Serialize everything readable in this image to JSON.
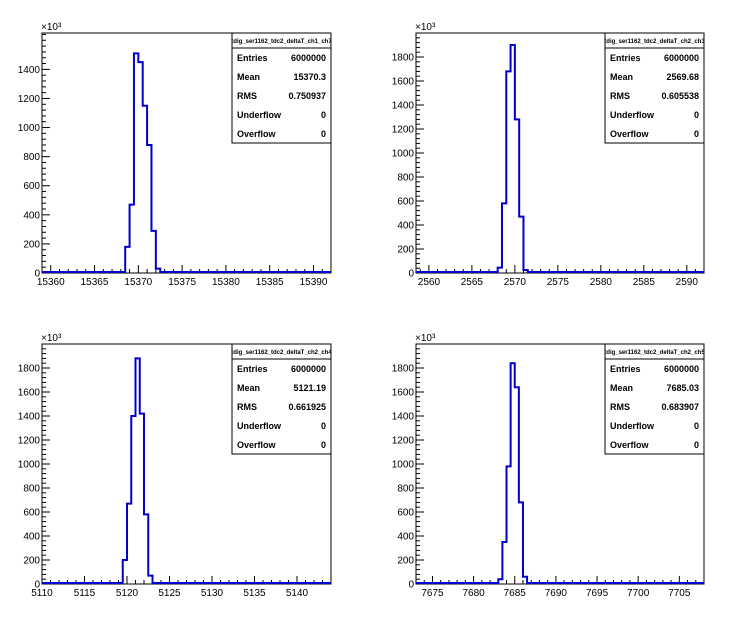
{
  "chart_data": [
    {
      "type": "histogram",
      "stats_title": "tdig_ser1162_tdc2_deltaT_ch1_ch7",
      "y_multiplier_label": "×10³",
      "xlim": [
        15359,
        15392
      ],
      "ylim": [
        0,
        1650
      ],
      "x_ticks": [
        15360,
        15365,
        15370,
        15375,
        15380,
        15385,
        15390
      ],
      "y_ticks": [
        0,
        200,
        400,
        600,
        800,
        1000,
        1200,
        1400
      ],
      "bin_edges": [
        15368.5,
        15369,
        15369.5,
        15370,
        15370.5,
        15371,
        15371.5,
        15372,
        15372.5
      ],
      "counts": [
        180,
        470,
        1510,
        1450,
        1150,
        880,
        290,
        30
      ],
      "stats": [
        {
          "label": "Entries",
          "value": "6000000"
        },
        {
          "label": "Mean",
          "value": "15370.3"
        },
        {
          "label": "RMS",
          "value": "0.750937"
        },
        {
          "label": "Underflow",
          "value": "0"
        },
        {
          "label": "Overflow",
          "value": "0"
        }
      ]
    },
    {
      "type": "histogram",
      "stats_title": "tdig_ser1162_tdc2_deltaT_ch2_ch3",
      "y_multiplier_label": "×10³",
      "xlim": [
        2558.5,
        2592
      ],
      "ylim": [
        0,
        2000
      ],
      "x_ticks": [
        2560,
        2565,
        2570,
        2575,
        2580,
        2585,
        2590
      ],
      "y_ticks": [
        0,
        200,
        400,
        600,
        800,
        1000,
        1200,
        1400,
        1600,
        1800
      ],
      "bin_edges": [
        2568,
        2568.5,
        2569,
        2569.5,
        2570,
        2570.5,
        2571,
        2571.5
      ],
      "counts": [
        45,
        580,
        1680,
        1900,
        1280,
        470,
        25
      ],
      "stats": [
        {
          "label": "Entries",
          "value": "6000000"
        },
        {
          "label": "Mean",
          "value": "2569.68"
        },
        {
          "label": "RMS",
          "value": "0.605538"
        },
        {
          "label": "Underflow",
          "value": "0"
        },
        {
          "label": "Overflow",
          "value": "0"
        }
      ]
    },
    {
      "type": "histogram",
      "stats_title": "tdig_ser1162_tdc2_deltaT_ch2_ch4",
      "y_multiplier_label": "×10³",
      "xlim": [
        5110,
        5144
      ],
      "ylim": [
        0,
        2000
      ],
      "x_ticks": [
        5110,
        5115,
        5120,
        5125,
        5130,
        5135,
        5140
      ],
      "y_ticks": [
        0,
        200,
        400,
        600,
        800,
        1000,
        1200,
        1400,
        1600,
        1800
      ],
      "bin_edges": [
        5119.5,
        5120,
        5120.5,
        5121,
        5121.5,
        5122,
        5122.5,
        5123
      ],
      "counts": [
        200,
        670,
        1400,
        1880,
        1420,
        580,
        70
      ],
      "stats": [
        {
          "label": "Entries",
          "value": "6000000"
        },
        {
          "label": "Mean",
          "value": "5121.19"
        },
        {
          "label": "RMS",
          "value": "0.661925"
        },
        {
          "label": "Underflow",
          "value": "0"
        },
        {
          "label": "Overflow",
          "value": "0"
        }
      ]
    },
    {
      "type": "histogram",
      "stats_title": "tdig_ser1162_tdc2_deltaT_ch2_ch5",
      "y_multiplier_label": "×10³",
      "xlim": [
        7673,
        7708
      ],
      "ylim": [
        0,
        2000
      ],
      "x_ticks": [
        7675,
        7680,
        7685,
        7690,
        7695,
        7700,
        7705
      ],
      "y_ticks": [
        0,
        200,
        400,
        600,
        800,
        1000,
        1200,
        1400,
        1600,
        1800
      ],
      "bin_edges": [
        7683,
        7683.5,
        7684,
        7684.5,
        7685,
        7685.5,
        7686,
        7686.5
      ],
      "counts": [
        40,
        350,
        980,
        1840,
        1640,
        680,
        60
      ],
      "stats": [
        {
          "label": "Entries",
          "value": "6000000"
        },
        {
          "label": "Mean",
          "value": "7685.03"
        },
        {
          "label": "RMS",
          "value": "0.683907"
        },
        {
          "label": "Underflow",
          "value": "0"
        },
        {
          "label": "Overflow",
          "value": "0"
        }
      ]
    }
  ]
}
